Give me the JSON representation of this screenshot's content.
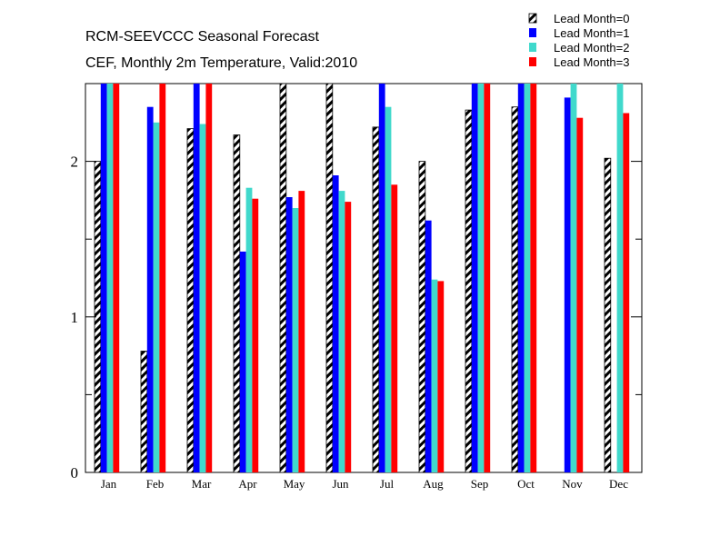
{
  "chart_data": {
    "type": "bar",
    "title": "RCM-SEEVCCC Seasonal Forecast",
    "subtitle": "CEF, Monthly 2m Temperature, Valid:2010",
    "xlabel": "",
    "ylabel": "",
    "categories": [
      "Jan",
      "Feb",
      "Mar",
      "Apr",
      "May",
      "Jun",
      "Jul",
      "Aug",
      "Sep",
      "Oct",
      "Nov",
      "Dec"
    ],
    "ylim": [
      0,
      2.5
    ],
    "yticks": [
      {
        "value": 0,
        "label": "0"
      },
      {
        "value": 1,
        "label": "1"
      },
      {
        "value": 2,
        "label": "2"
      }
    ],
    "legend_position": "top-right",
    "grid": false,
    "series": [
      {
        "name": "Lead Month=0",
        "color": "#000000",
        "pattern": "hatched",
        "values": [
          2.0,
          0.78,
          2.21,
          2.17,
          2.5,
          2.5,
          2.22,
          2.0,
          2.33,
          2.35,
          null,
          2.02
        ]
      },
      {
        "name": "Lead Month=1",
        "color": "#0000ff",
        "values": [
          2.5,
          2.35,
          2.5,
          1.42,
          1.77,
          1.91,
          2.5,
          1.62,
          2.5,
          2.5,
          2.41,
          null
        ]
      },
      {
        "name": "Lead Month=2",
        "color": "#40d9cc",
        "values": [
          2.5,
          2.25,
          2.24,
          1.83,
          1.7,
          1.81,
          2.35,
          1.24,
          2.5,
          2.5,
          2.5,
          2.5
        ]
      },
      {
        "name": "Lead Month=3",
        "color": "#ff0000",
        "values": [
          2.5,
          2.5,
          2.5,
          1.76,
          1.81,
          1.74,
          1.85,
          1.23,
          2.5,
          2.5,
          2.28,
          2.31
        ]
      }
    ]
  }
}
